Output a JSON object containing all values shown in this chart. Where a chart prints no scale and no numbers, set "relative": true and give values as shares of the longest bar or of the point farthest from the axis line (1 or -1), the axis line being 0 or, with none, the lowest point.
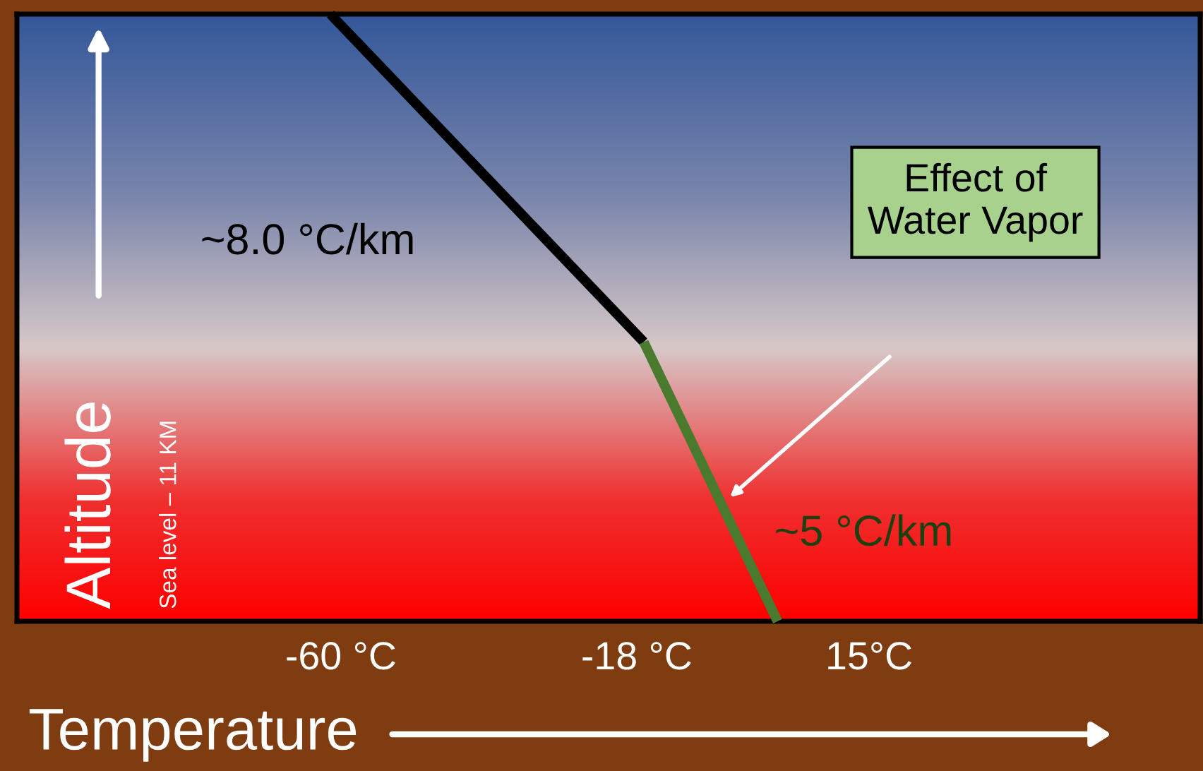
{
  "chart_data": {
    "type": "line",
    "relative": true,
    "xlabel": "Temperature",
    "ylabel": "Altitude",
    "xlim": [
      -106,
      62
    ],
    "xticks": [
      {
        "value": -60,
        "label": "-60 °C"
      },
      {
        "value": -18,
        "label": "-18 °C"
      },
      {
        "value": 15,
        "label": "15°C"
      }
    ],
    "tick_labels": "x",
    "grid": false,
    "marker": "none",
    "line_style": "solid",
    "series": [
      {
        "color": "#000000",
        "x": [
          -61.5,
          -17
        ],
        "values": [
          1,
          0.46
        ]
      },
      {
        "color": "#4a7a2e",
        "x": [
          -17,
          2
        ],
        "values": [
          0.46,
          0
        ]
      }
    ],
    "annotations": [
      "Sea level – 11 KM",
      "~8.0 °C/km",
      "~5 °C/km",
      "Effect of\nWater Vapor"
    ]
  }
}
